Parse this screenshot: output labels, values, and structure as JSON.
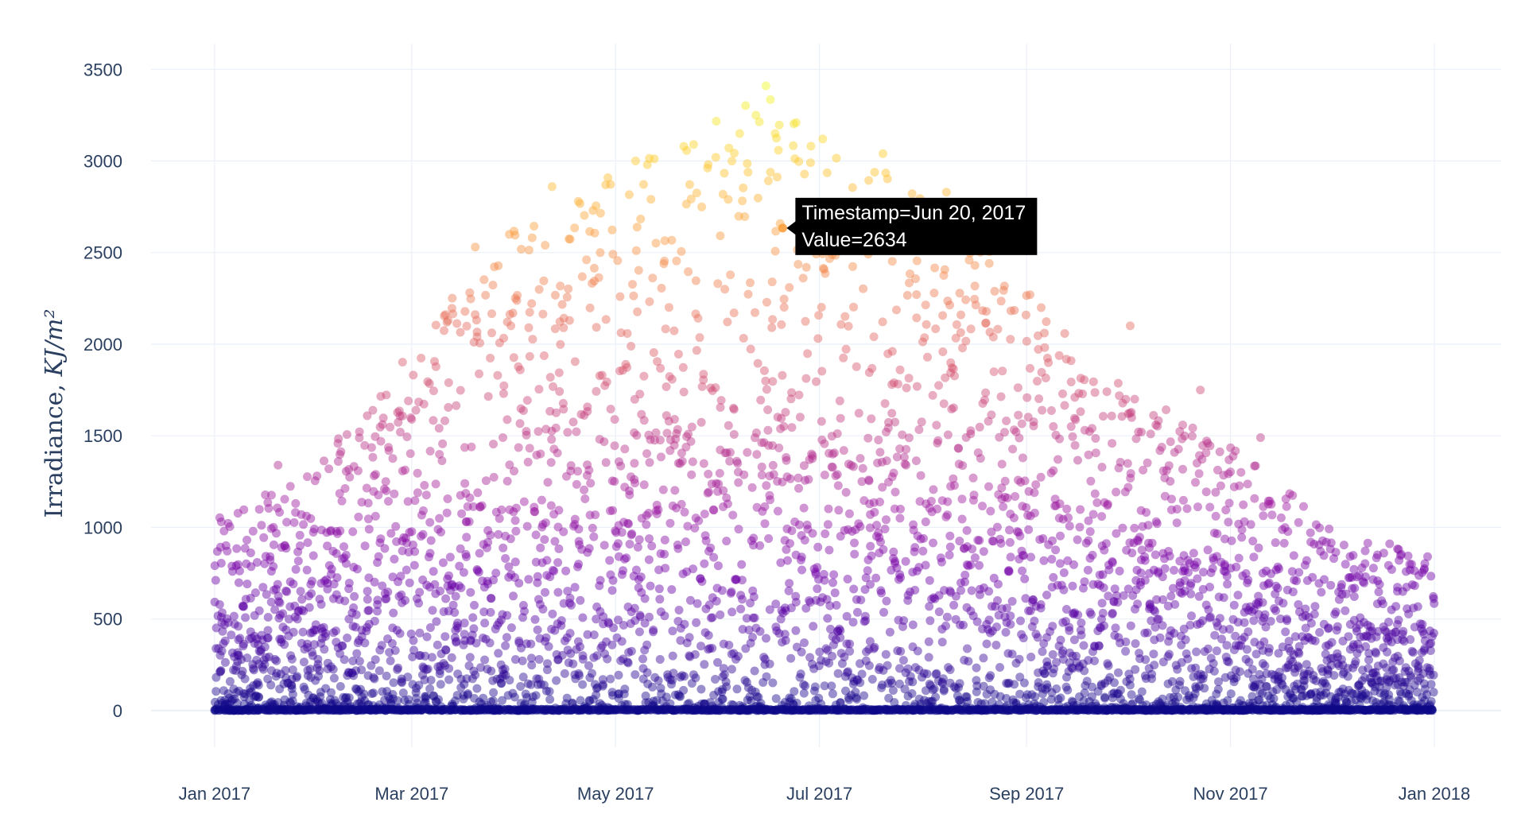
{
  "chart_data": {
    "type": "scatter",
    "ylabel_prefix": "Irradiance, ",
    "ylabel_math": "KJ/m²",
    "x_tick_labels": [
      {
        "date": "2017-01-01",
        "label": "Jan 2017"
      },
      {
        "date": "2017-03-01",
        "label": "Mar 2017"
      },
      {
        "date": "2017-05-01",
        "label": "May 2017"
      },
      {
        "date": "2017-07-01",
        "label": "Jul 2017"
      },
      {
        "date": "2017-09-01",
        "label": "Sep 2017"
      },
      {
        "date": "2017-11-01",
        "label": "Nov 2017"
      },
      {
        "date": "2018-01-01",
        "label": "Jan 2018"
      }
    ],
    "y_ticks": [
      0,
      500,
      1000,
      1500,
      2000,
      2500,
      3000,
      3500
    ],
    "xlim": [
      "2016-12-13",
      "2018-01-21"
    ],
    "ylim": [
      -200,
      3640
    ],
    "grid": true,
    "colorscale": "plasma",
    "color_range": [
      0,
      3400
    ],
    "seasonal_envelope": [
      {
        "date": "2017-01-01",
        "max": 1050
      },
      {
        "date": "2017-02-01",
        "max": 1350
      },
      {
        "date": "2017-03-01",
        "max": 2000
      },
      {
        "date": "2017-04-01",
        "max": 2650
      },
      {
        "date": "2017-05-01",
        "max": 3000
      },
      {
        "date": "2017-06-01",
        "max": 3250
      },
      {
        "date": "2017-06-20",
        "max": 3400
      },
      {
        "date": "2017-07-01",
        "max": 3100
      },
      {
        "date": "2017-08-01",
        "max": 2850
      },
      {
        "date": "2017-09-01",
        "max": 2300
      },
      {
        "date": "2017-10-01",
        "max": 1750
      },
      {
        "date": "2017-11-01",
        "max": 1450
      },
      {
        "date": "2017-12-01",
        "max": 1000
      },
      {
        "date": "2018-01-01",
        "max": 850
      }
    ],
    "sample_points": [
      {
        "date": "2017-06-15",
        "value": 3410
      },
      {
        "date": "2017-06-12",
        "value": 3250
      },
      {
        "date": "2017-07-02",
        "value": 3120
      },
      {
        "date": "2017-07-20",
        "value": 3040
      },
      {
        "date": "2017-05-31",
        "value": 3020
      },
      {
        "date": "2017-05-07",
        "value": 3000
      },
      {
        "date": "2017-04-12",
        "value": 2860
      },
      {
        "date": "2017-08-08",
        "value": 2830
      },
      {
        "date": "2017-03-20",
        "value": 2530
      },
      {
        "date": "2017-09-02",
        "value": 2270
      },
      {
        "date": "2017-10-02",
        "value": 2100
      },
      {
        "date": "2017-02-07",
        "value": 1360
      },
      {
        "date": "2017-01-20",
        "value": 1340
      },
      {
        "date": "2017-10-23",
        "value": 1750
      },
      {
        "date": "2017-11-10",
        "value": 1490
      },
      {
        "date": "2017-12-15",
        "value": 850
      },
      {
        "date": "2017-12-30",
        "value": 840
      },
      {
        "date": "2017-01-03",
        "value": 1030
      }
    ],
    "hover": {
      "date": "2017-06-20",
      "value": 2634,
      "timestamp_line": "Timestamp=Jun 20, 2017",
      "value_line": "Value=2634"
    }
  }
}
